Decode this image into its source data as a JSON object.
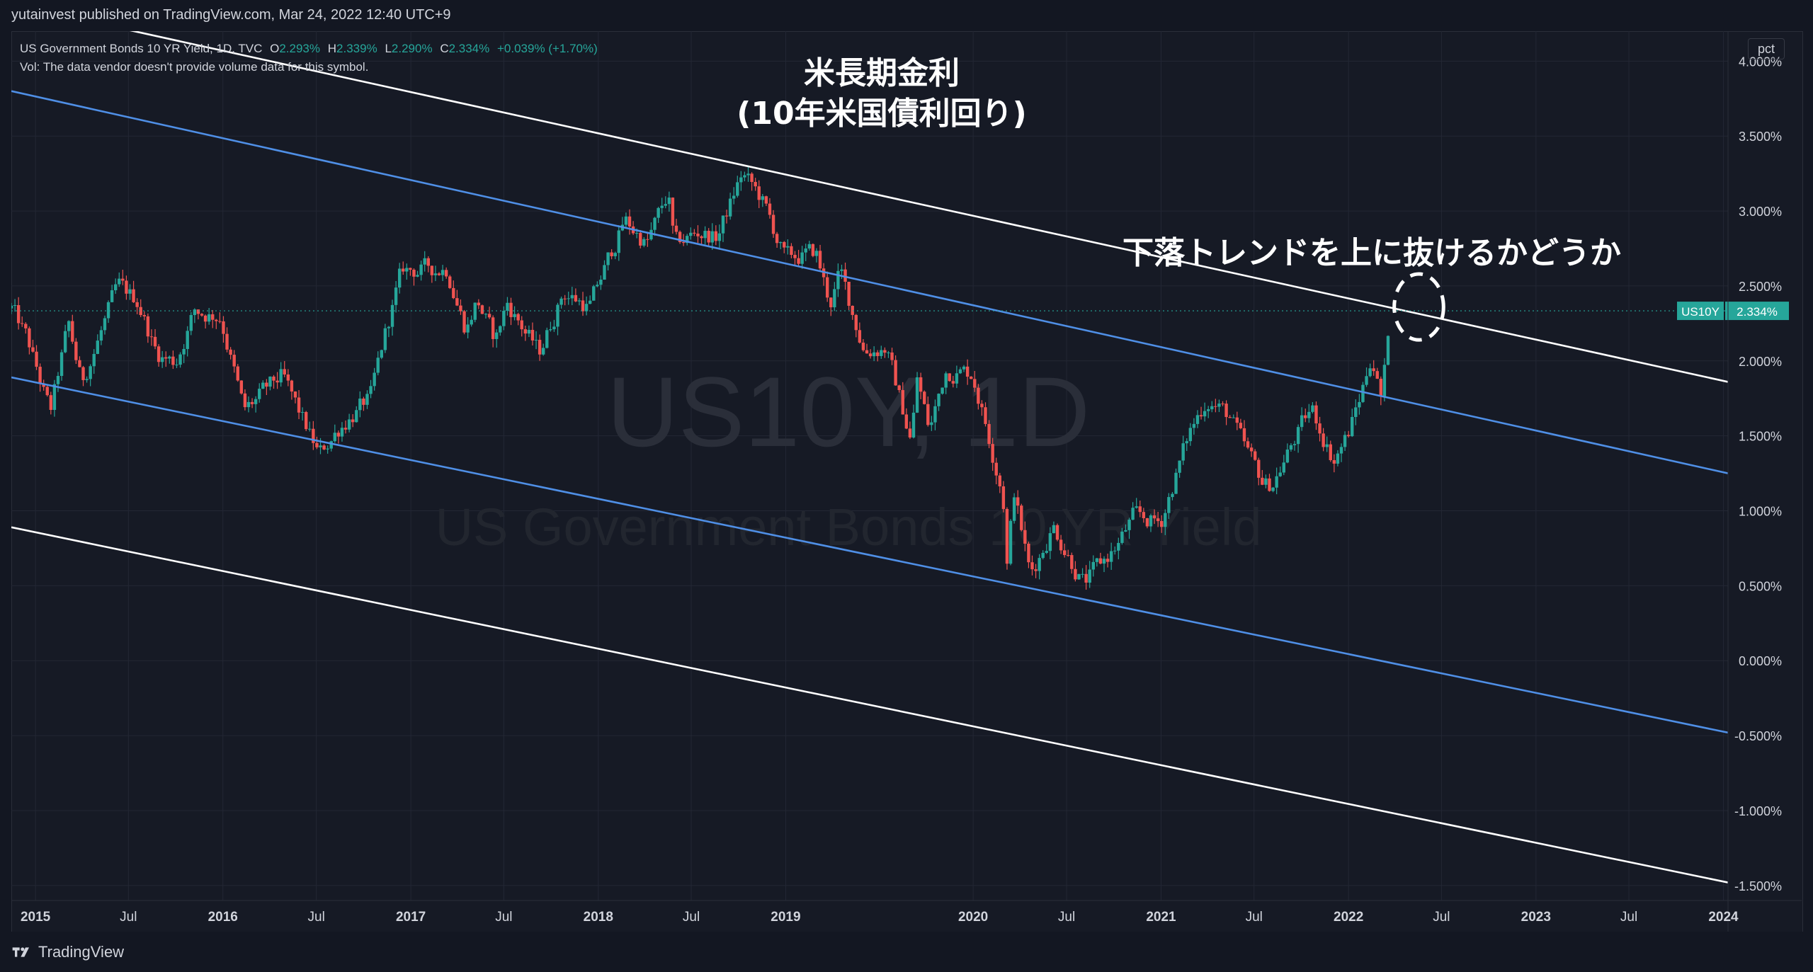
{
  "header": {
    "published": "yutainvest published on TradingView.com, Mar 24, 2022 12:40 UTC+9"
  },
  "legend": {
    "title": "US Government Bonds 10 YR Yield, 1D, TVC",
    "open_label": "O",
    "open": "2.293%",
    "high_label": "H",
    "high": "2.339%",
    "low_label": "L",
    "low": "2.290%",
    "close_label": "C",
    "close": "2.334%",
    "change": "+0.039% (+1.70%)",
    "volume_note": "Vol: The data vendor doesn't provide volume data for this symbol."
  },
  "unit_badge": "pct",
  "footer": {
    "brand": "TradingView"
  },
  "colors": {
    "background": "#161a25",
    "up": "#26a69a",
    "down": "#ef5350",
    "channel_blue": "#4f8fe6",
    "channel_white": "#ffffff",
    "price_label": "#26a69a"
  },
  "chart_data": {
    "type": "candlestick",
    "symbol": "US10Y",
    "timeframe": "1D",
    "watermark": "US10Y, 1D",
    "watermark_sub": "US Government Bonds 10 YR Yield",
    "title": "米長期金利",
    "subtitle": "(10年米国債利回り)",
    "annotation": "下落トレンドを上に抜けるかどうか",
    "last_price_label": "US10Y",
    "last_price_value": "2.334%",
    "last_price": 2.334,
    "y_axis": {
      "min": -1.6,
      "max": 4.2,
      "ticks": [
        "4.000%",
        "3.500%",
        "3.000%",
        "2.500%",
        "2.000%",
        "1.500%",
        "1.000%",
        "0.500%",
        "0.000%",
        "-0.500%",
        "-1.000%",
        "-1.500%"
      ],
      "tick_values": [
        4.0,
        3.5,
        3.0,
        2.5,
        2.0,
        1.5,
        1.0,
        0.5,
        0.0,
        -0.5,
        -1.0,
        -1.5
      ]
    },
    "x_axis": {
      "start": "2014-11-15",
      "end": "2024-01-10",
      "ticks": [
        {
          "label": "2015",
          "date": "2015-01-01"
        },
        {
          "label": "Jul",
          "date": "2015-07-01"
        },
        {
          "label": "2016",
          "date": "2016-01-01"
        },
        {
          "label": "Jul",
          "date": "2016-07-01"
        },
        {
          "label": "2017",
          "date": "2017-01-01"
        },
        {
          "label": "Jul",
          "date": "2017-07-01"
        },
        {
          "label": "2018",
          "date": "2018-01-01"
        },
        {
          "label": "Jul",
          "date": "2018-07-01"
        },
        {
          "label": "2019",
          "date": "2019-01-01"
        },
        {
          "label": "2020",
          "date": "2020-01-01"
        },
        {
          "label": "Jul",
          "date": "2020-07-01"
        },
        {
          "label": "2021",
          "date": "2021-01-01"
        },
        {
          "label": "Jul",
          "date": "2021-07-01"
        },
        {
          "label": "2022",
          "date": "2022-01-01"
        },
        {
          "label": "Jul",
          "date": "2022-07-01"
        },
        {
          "label": "2023",
          "date": "2023-01-01"
        },
        {
          "label": "Jul",
          "date": "2023-07-01"
        },
        {
          "label": "2024",
          "date": "2024-01-01"
        }
      ]
    },
    "series": [
      {
        "type": "close",
        "points": [
          [
            "2014-11-15",
            2.35
          ],
          [
            "2014-12-15",
            2.15
          ],
          [
            "2015-01-30",
            1.65
          ],
          [
            "2015-03-06",
            2.24
          ],
          [
            "2015-04-01",
            1.85
          ],
          [
            "2015-06-10",
            2.49
          ],
          [
            "2015-07-20",
            2.4
          ],
          [
            "2015-08-25",
            2.05
          ],
          [
            "2015-10-01",
            1.99
          ],
          [
            "2015-11-06",
            2.33
          ],
          [
            "2015-12-28",
            2.3
          ],
          [
            "2016-02-11",
            1.66
          ],
          [
            "2016-04-25",
            1.9
          ],
          [
            "2016-07-06",
            1.37
          ],
          [
            "2016-08-20",
            1.58
          ],
          [
            "2016-10-15",
            1.75
          ],
          [
            "2016-11-10",
            2.15
          ],
          [
            "2016-12-15",
            2.6
          ],
          [
            "2017-03-13",
            2.62
          ],
          [
            "2017-04-18",
            2.21
          ],
          [
            "2017-05-10",
            2.41
          ],
          [
            "2017-06-14",
            2.13
          ],
          [
            "2017-07-07",
            2.39
          ],
          [
            "2017-09-08",
            2.05
          ],
          [
            "2017-10-25",
            2.46
          ],
          [
            "2017-12-15",
            2.36
          ],
          [
            "2018-02-21",
            2.94
          ],
          [
            "2018-04-05",
            2.78
          ],
          [
            "2018-05-17",
            3.11
          ],
          [
            "2018-05-29",
            2.77
          ],
          [
            "2018-07-15",
            2.86
          ],
          [
            "2018-08-20",
            2.82
          ],
          [
            "2018-10-08",
            3.25
          ],
          [
            "2018-11-15",
            3.08
          ],
          [
            "2018-12-31",
            2.68
          ],
          [
            "2019-03-01",
            2.72
          ],
          [
            "2019-03-28",
            2.38
          ],
          [
            "2019-04-17",
            2.59
          ],
          [
            "2019-06-03",
            2.07
          ],
          [
            "2019-07-15",
            2.09
          ],
          [
            "2019-09-03",
            1.46
          ],
          [
            "2019-09-13",
            1.9
          ],
          [
            "2019-10-08",
            1.53
          ],
          [
            "2019-11-08",
            1.94
          ],
          [
            "2019-12-31",
            1.92
          ],
          [
            "2020-02-28",
            1.13
          ],
          [
            "2020-03-09",
            0.54
          ],
          [
            "2020-03-18",
            1.18
          ],
          [
            "2020-04-21",
            0.57
          ],
          [
            "2020-06-05",
            0.9
          ],
          [
            "2020-08-04",
            0.51
          ],
          [
            "2020-10-10",
            0.78
          ],
          [
            "2020-11-09",
            0.96
          ],
          [
            "2020-12-31",
            0.92
          ],
          [
            "2021-02-25",
            1.52
          ],
          [
            "2021-03-31",
            1.75
          ],
          [
            "2021-05-15",
            1.63
          ],
          [
            "2021-06-10",
            1.43
          ],
          [
            "2021-07-20",
            1.18
          ],
          [
            "2021-08-04",
            1.17
          ],
          [
            "2021-09-28",
            1.54
          ],
          [
            "2021-10-21",
            1.68
          ],
          [
            "2021-12-03",
            1.34
          ],
          [
            "2021-12-31",
            1.51
          ],
          [
            "2022-01-24",
            1.76
          ],
          [
            "2022-02-15",
            2.05
          ],
          [
            "2022-03-07",
            1.72
          ],
          [
            "2022-03-18",
            2.15
          ],
          [
            "2022-03-23",
            2.334
          ]
        ]
      }
    ],
    "channel_lines": [
      {
        "color": "white",
        "from": [
          "2014-11-15",
          4.38
        ],
        "to": [
          "2024-01-10",
          1.86
        ]
      },
      {
        "color": "blue",
        "from": [
          "2014-11-15",
          3.8
        ],
        "to": [
          "2024-01-10",
          1.25
        ]
      },
      {
        "color": "blue",
        "from": [
          "2014-11-15",
          1.89
        ],
        "to": [
          "2024-01-10",
          -0.48
        ]
      },
      {
        "color": "white",
        "from": [
          "2014-11-15",
          0.89
        ],
        "to": [
          "2024-01-10",
          -1.48
        ]
      }
    ],
    "highlight": {
      "type": "ellipse",
      "center": [
        "2022-05-18",
        2.36
      ],
      "rx_days": 48,
      "ry": 0.22
    },
    "grid": true
  }
}
